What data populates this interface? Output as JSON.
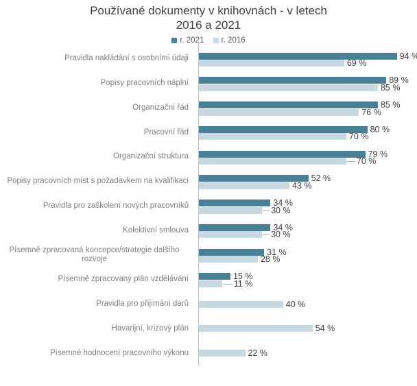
{
  "header": {
    "title_line1": "Používané dokumenty v knihovnách - v letech",
    "title_line2": "2016 a 2021"
  },
  "chart_data": {
    "type": "bar",
    "orientation": "horizontal",
    "title": "Používané dokumenty v knihovnách - v letech 2016 a 2021",
    "xlabel": "",
    "ylabel": "",
    "xlim": [
      0,
      100
    ],
    "value_suffix": " %",
    "grid": false,
    "legend_position": "top-center",
    "categories": [
      "Pravidla nakládání s osobními údaji",
      "Popisy pracovních náplní",
      "Organizační řád",
      "Pracovní řád",
      "Organizační struktura",
      "Popisy pracovních míst s požadavkem na kvalifikaci",
      "Pravidla pro zaškolení nových pracovníků",
      "Kolektivní smlouva",
      "Písemně zpracovaná koncepce/strategie dalšího rozvoje",
      "Písemně zpracovaný plán vzdělávání",
      "Pravidla pro přijímání darů",
      "Havarijní, krizový plán",
      "Písemné hodnocení pracovního výkonu"
    ],
    "series": [
      {
        "name": "r. 2021",
        "color": "#4A7F98",
        "values": [
          94,
          89,
          85,
          80,
          79,
          52,
          34,
          34,
          31,
          15,
          null,
          null,
          null
        ]
      },
      {
        "name": "r. 2016",
        "color": "#C6D9E2",
        "values": [
          69,
          85,
          76,
          70,
          70,
          43,
          30,
          30,
          28,
          11,
          40,
          54,
          22
        ]
      }
    ],
    "data_labels_shown": true,
    "axis_line_color": "#BFBFBF"
  }
}
